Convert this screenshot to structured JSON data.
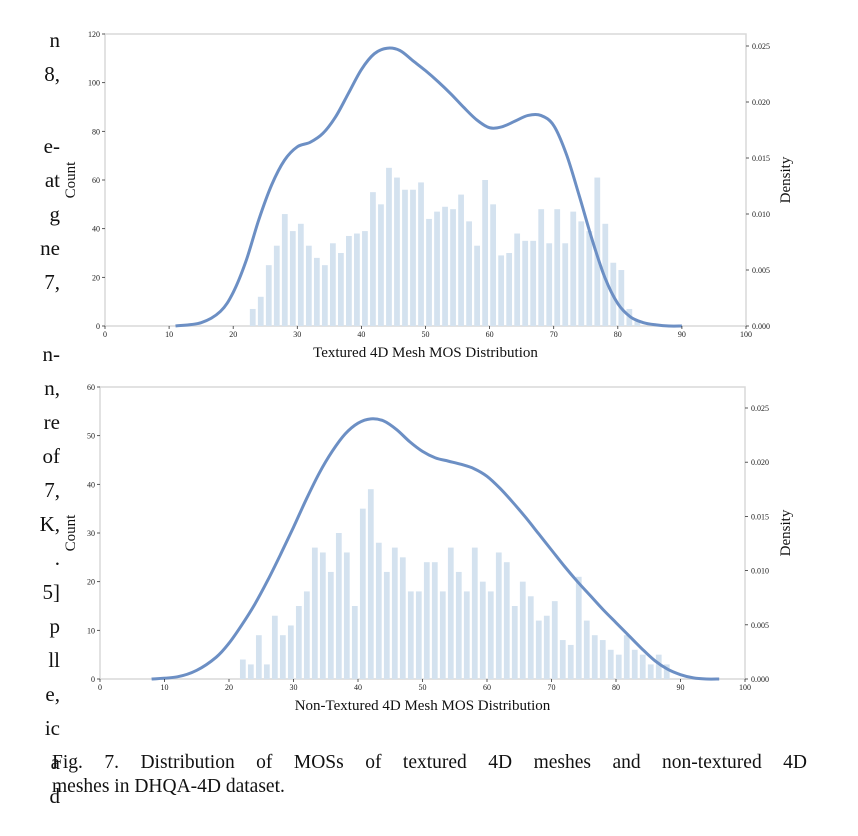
{
  "body_text_fragments": [
    "n",
    "8,",
    "",
    "e-",
    "at",
    "g",
    "ne",
    "7,",
    "",
    "n-",
    "n,",
    "re",
    "of",
    "7,",
    "K,",
    ".",
    "5]",
    "p",
    "ll",
    "e,",
    "ic",
    "a",
    "d"
  ],
  "caption": {
    "line1": "Fig. 7.  Distribution of MOSs of textured 4D meshes and non-textured 4D",
    "line2": "meshes in DHQA-4D dataset."
  },
  "colors": {
    "bar": "#d4e2ef",
    "kde": "#6c8fc4",
    "axis": "#d9d9d9"
  },
  "chart_data": [
    {
      "type": "bar",
      "title": "Textured 4D Mesh MOS Distribution",
      "xlabel": "Textured 4D Mesh MOS Distribution",
      "ylabel": "Count",
      "y2label": "Density",
      "xlim": [
        0,
        100
      ],
      "ylim": [
        0,
        120
      ],
      "y2lim": [
        0,
        0.026
      ],
      "xticks": [
        "0",
        "10",
        "20",
        "30",
        "40",
        "50",
        "60",
        "70",
        "80",
        "90",
        "100"
      ],
      "yticks": [
        "0",
        "20",
        "40",
        "60",
        "80",
        "100",
        "120"
      ],
      "y2ticks": [
        "0.000",
        "0.005",
        "0.010",
        "0.015",
        "0.020",
        "0.025"
      ],
      "grid": false,
      "bins": {
        "start": 22.6,
        "width": 1.25
      },
      "values": [
        7,
        12,
        25,
        33,
        46,
        39,
        42,
        33,
        28,
        25,
        34,
        30,
        37,
        38,
        39,
        55,
        50,
        65,
        61,
        56,
        56,
        59,
        44,
        47,
        49,
        48,
        54,
        43,
        33,
        60,
        50,
        29,
        30,
        38,
        35,
        35,
        48,
        34,
        48,
        34,
        47,
        43,
        39,
        61,
        42,
        26,
        23,
        7,
        2
      ],
      "kde": {
        "x": [
          11,
          15,
          18,
          20,
          22,
          24,
          26,
          28,
          30,
          32,
          34,
          36,
          38,
          40,
          42,
          44,
          46,
          48,
          50,
          52,
          54,
          56,
          58,
          60,
          62,
          64,
          66,
          68,
          70,
          72,
          74,
          76,
          78,
          80,
          82,
          84,
          86,
          88,
          90
        ],
        "y": [
          0.0,
          0.0003,
          0.0013,
          0.003,
          0.0058,
          0.0095,
          0.0126,
          0.0148,
          0.016,
          0.0164,
          0.0172,
          0.0187,
          0.0208,
          0.0229,
          0.0243,
          0.0248,
          0.0246,
          0.0237,
          0.0228,
          0.0218,
          0.0207,
          0.0195,
          0.0184,
          0.0177,
          0.0178,
          0.0183,
          0.0188,
          0.0188,
          0.0179,
          0.0153,
          0.0116,
          0.0077,
          0.0043,
          0.002,
          0.0008,
          0.0003,
          0.0001,
          0.0,
          0.0
        ]
      }
    },
    {
      "type": "bar",
      "title": "Non-Textured 4D Mesh MOS Distribution",
      "xlabel": "Non-Textured 4D Mesh MOS Distribution",
      "ylabel": "Count",
      "y2label": "Density",
      "xlim": [
        0,
        100
      ],
      "ylim": [
        0,
        60
      ],
      "y2lim": [
        0,
        0.0275
      ],
      "xticks": [
        "0",
        "10",
        "20",
        "30",
        "40",
        "50",
        "60",
        "70",
        "80",
        "90",
        "100"
      ],
      "yticks": [
        "0",
        "10",
        "20",
        "30",
        "40",
        "50",
        "60"
      ],
      "y2ticks": [
        "0.000",
        "0.005",
        "0.010",
        "0.015",
        "0.020",
        "0.025"
      ],
      "grid": false,
      "bins": {
        "start": 21.7,
        "width": 1.24
      },
      "values": [
        4,
        3,
        9,
        3,
        13,
        9,
        11,
        15,
        18,
        27,
        26,
        22,
        30,
        26,
        15,
        35,
        39,
        28,
        22,
        27,
        25,
        18,
        18,
        24,
        24,
        18,
        27,
        22,
        18,
        27,
        20,
        18,
        26,
        24,
        15,
        20,
        17,
        12,
        13,
        16,
        8,
        7,
        21,
        12,
        9,
        8,
        6,
        5,
        9,
        6,
        5,
        3,
        5,
        3
      ],
      "kde": {
        "x": [
          8,
          12,
          15,
          18,
          20,
          22,
          24,
          26,
          28,
          30,
          32,
          34,
          36,
          38,
          40,
          42,
          44,
          46,
          48,
          50,
          52,
          54,
          56,
          58,
          60,
          62,
          64,
          66,
          68,
          70,
          72,
          74,
          76,
          78,
          80,
          82,
          84,
          86,
          88,
          90,
          92,
          94,
          96
        ],
        "y": [
          0.0,
          0.0002,
          0.0008,
          0.002,
          0.0033,
          0.005,
          0.0069,
          0.0091,
          0.0115,
          0.014,
          0.0166,
          0.019,
          0.021,
          0.0226,
          0.0236,
          0.024,
          0.0238,
          0.023,
          0.0219,
          0.021,
          0.0204,
          0.0201,
          0.0198,
          0.0194,
          0.0187,
          0.0176,
          0.0163,
          0.0149,
          0.0134,
          0.0119,
          0.0104,
          0.009,
          0.0077,
          0.0064,
          0.0052,
          0.004,
          0.0028,
          0.0017,
          0.0009,
          0.0004,
          0.0001,
          0.0,
          0.0
        ]
      }
    }
  ]
}
